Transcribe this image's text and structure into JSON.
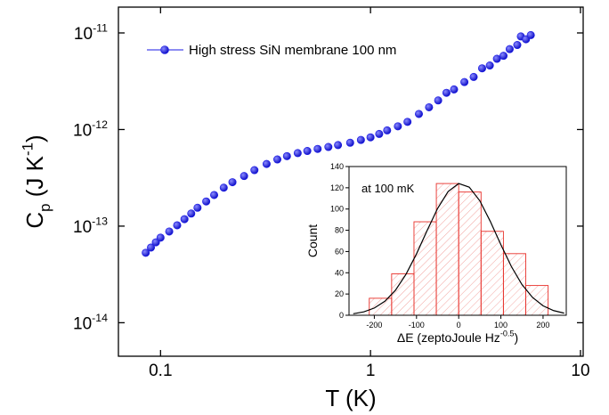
{
  "chart_data": [
    {
      "type": "scatter",
      "x_log": true,
      "y_log": true,
      "x_label": "T (K)",
      "y_label": [
        "C",
        "p",
        " (J K",
        "-1",
        ")"
      ],
      "xlim": [
        0.063,
        10.3
      ],
      "ylim": [
        4.5e-15,
        1.85e-11
      ],
      "xticks": [
        0.1,
        1,
        10
      ],
      "yticks": [
        {
          "value": 1e-14,
          "label": [
            "10",
            "-14"
          ]
        },
        {
          "value": 1e-13,
          "label": [
            "10",
            "-13"
          ]
        },
        {
          "value": 1e-12,
          "label": [
            "10",
            "-12"
          ]
        },
        {
          "value": 1e-11,
          "label": [
            "10",
            "-11"
          ]
        }
      ],
      "legend": "top-left",
      "series": [
        {
          "name": "High stress SiN membrane 100 nm",
          "color": "#1a1ae6",
          "x": [
            0.085,
            0.09,
            0.095,
            0.1,
            0.11,
            0.12,
            0.13,
            0.14,
            0.15,
            0.165,
            0.18,
            0.2,
            0.22,
            0.25,
            0.28,
            0.32,
            0.36,
            0.4,
            0.45,
            0.5,
            0.56,
            0.63,
            0.7,
            0.8,
            0.9,
            1.0,
            1.1,
            1.2,
            1.35,
            1.5,
            1.7,
            1.9,
            2.1,
            2.3,
            2.5,
            2.8,
            3.1,
            3.4,
            3.7,
            4.0,
            4.3,
            4.6,
            5.0,
            5.2,
            5.5,
            5.8
          ],
          "values": [
            5.3e-14,
            6e-14,
            6.8e-14,
            7.6e-14,
            8.8e-14,
            1.02e-13,
            1.18e-13,
            1.35e-13,
            1.55e-13,
            1.8e-13,
            2.1e-13,
            2.5e-13,
            2.85e-13,
            3.3e-13,
            3.8e-13,
            4.4e-13,
            4.9e-13,
            5.3e-13,
            5.7e-13,
            6e-13,
            6.3e-13,
            6.6e-13,
            6.9e-13,
            7.3e-13,
            7.8e-13,
            8.3e-13,
            9e-13,
            9.8e-13,
            1.08e-12,
            1.2e-12,
            1.45e-12,
            1.7e-12,
            2e-12,
            2.4e-12,
            2.6e-12,
            3.1e-12,
            3.5e-12,
            4.3e-12,
            4.6e-12,
            5.4e-12,
            5.8e-12,
            6.8e-12,
            7.5e-12,
            9.2e-12,
            8.6e-12,
            9.5e-12
          ]
        }
      ]
    },
    {
      "type": "histogram",
      "annotation": "at 100 mK",
      "x_label": [
        "ΔE (zeptoJoule Hz",
        "-0.5",
        ")"
      ],
      "y_label": "Count",
      "xlim": [
        -260,
        255
      ],
      "ylim": [
        0,
        140
      ],
      "xticks": [
        -200,
        -100,
        0,
        100,
        200
      ],
      "yticks": [
        0,
        20,
        40,
        60,
        80,
        100,
        120,
        140
      ],
      "bins": [
        -212,
        -159,
        -106,
        -53,
        0,
        53,
        106,
        159,
        212
      ],
      "values": [
        16,
        39,
        88,
        124,
        116,
        79,
        58,
        28
      ],
      "color": "#e8302a",
      "fit": {
        "color": "#000000",
        "x": [
          -250,
          -225,
          -200,
          -175,
          -150,
          -125,
          -100,
          -75,
          -50,
          -25,
          0,
          25,
          50,
          75,
          100,
          125,
          150,
          175,
          200,
          225,
          250
        ],
        "values": [
          1.4,
          3.2,
          6.8,
          13.2,
          23.5,
          38.5,
          57.8,
          79.6,
          100.6,
          116.5,
          124,
          120.6,
          107.8,
          88.3,
          66.4,
          45.8,
          28.9,
          16.8,
          8.9,
          4.4,
          2.0
        ]
      }
    }
  ]
}
